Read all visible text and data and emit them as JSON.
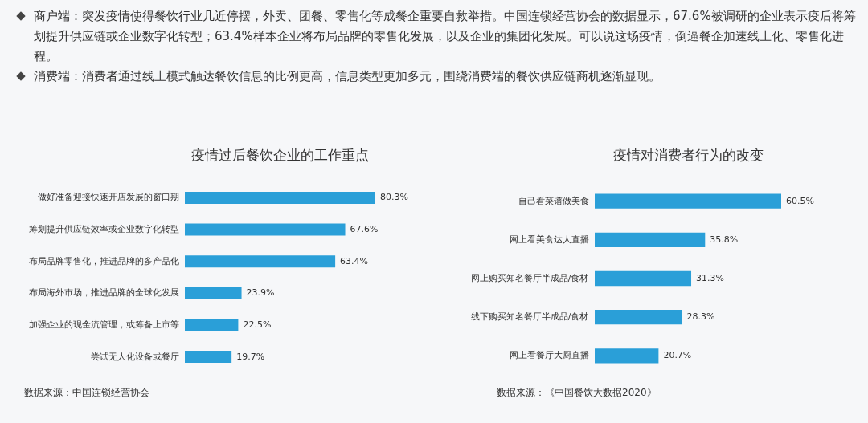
{
  "chart_data": [
    {
      "type": "other",
      "annotations": [
        "商户端：突发疫情使得餐饮行业几近停摆，外卖、团餐、零售化等成餐企重要自救举措。中国连锁经营协会的数据显示，67.6%被调研的企业表示疫后将筹划提升供应链或企业数字化转型；63.4%样本企业将布局品牌的零售化发展，以及企业的集团化发展。可以说这场疫情，倒逼餐企加速线上化、零售化进程。",
        "消费端：消费者通过线上模式触达餐饮信息的比例更高，信息类型更加多元，围绕消费端的餐饮供应链商机逐渐显现。"
      ]
    },
    {
      "type": "bar",
      "orientation": "horizontal",
      "title": "疫情过后餐饮企业的工作重点",
      "categories": [
        "做好准备迎接快速开店发展的窗口期",
        "筹划提升供应链效率或企业数字化转型",
        "布局品牌零售化，推进品牌的多产品化",
        "布局海外市场，推进品牌的全球化发展",
        "加强企业的现金流管理，或筹备上市等",
        "尝试无人化设备或餐厅"
      ],
      "values": [
        80.3,
        67.6,
        63.4,
        23.9,
        22.5,
        19.7
      ],
      "value_labels": [
        "80.3%",
        "67.6%",
        "63.4%",
        "23.9%",
        "22.5%",
        "19.7%"
      ],
      "color": "#2a9fd8",
      "annotations": [
        "数据来源：中国连锁经营协会"
      ]
    },
    {
      "type": "bar",
      "orientation": "horizontal",
      "title": "疫情对消费者行为的改变",
      "categories": [
        "自己看菜谱做美食",
        "网上看美食达人直播",
        "网上购买知名餐厅半成品/食材",
        "线下购买知名餐厅半成品/食材",
        "网上看餐厅大厨直播"
      ],
      "values": [
        60.5,
        35.8,
        31.3,
        28.3,
        20.7
      ],
      "value_labels": [
        "60.5%",
        "35.8%",
        "31.3%",
        "28.3%",
        "20.7%"
      ],
      "color": "#2a9fd8",
      "annotations": [
        "数据来源：《中国餐饮大数据2020》"
      ]
    }
  ]
}
